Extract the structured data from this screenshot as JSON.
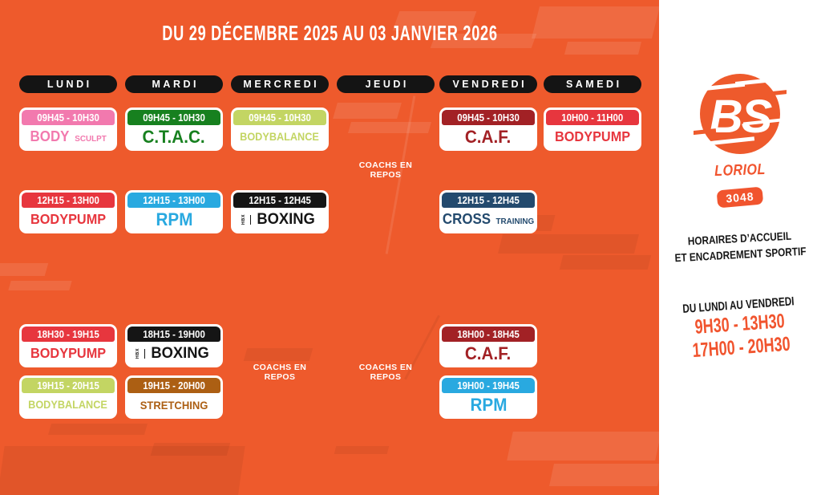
{
  "title": "DU 29 DÉCEMBRE 2025 AU 03 JANVIER 2026",
  "days": [
    "LUNDI",
    "MARDI",
    "MERCREDI",
    "JEUDI",
    "VENDREDI",
    "SAMEDI"
  ],
  "schedule": {
    "cards": [
      {
        "day": 0,
        "row": 0,
        "time": "09H45 - 10H30",
        "name": "BODY",
        "sub": "SCULPT",
        "color": "#F279AE"
      },
      {
        "day": 1,
        "row": 0,
        "time": "09H45 - 10H30",
        "name": "C.T.A.C.",
        "color": "#17801F"
      },
      {
        "day": 2,
        "row": 0,
        "time": "09H45 - 10H30",
        "name": "BODYBALANCE",
        "color": "#C3D563"
      },
      {
        "day": 4,
        "row": 0,
        "time": "09H45 - 10H30",
        "name": "C.A.F.",
        "color": "#A22125"
      },
      {
        "day": 5,
        "row": 0,
        "time": "10H00 - 11H00",
        "name": "BODYPUMP",
        "color": "#E7363E"
      },
      {
        "day": 0,
        "row": 1,
        "time": "12H15 - 13H00",
        "name": "BODYPUMP",
        "color": "#E7363E"
      },
      {
        "day": 1,
        "row": 1,
        "time": "12H15 - 13H00",
        "name": "RPM",
        "color": "#29A9E0"
      },
      {
        "day": 2,
        "row": 1,
        "time": "12H15 - 12H45",
        "name": "BOXING",
        "badge": "HBX",
        "color": "#151515"
      },
      {
        "day": 4,
        "row": 1,
        "time": "12H15 - 12H45",
        "name": "CROSS",
        "sub": "TRAINING",
        "color": "#234A6E"
      },
      {
        "day": 0,
        "row": 2,
        "time": "18H30 - 19H15",
        "name": "BODYPUMP",
        "color": "#E7363E"
      },
      {
        "day": 1,
        "row": 2,
        "time": "18H15 - 19H00",
        "name": "BOXING",
        "badge": "HBX",
        "color": "#151515"
      },
      {
        "day": 4,
        "row": 2,
        "time": "18H00 - 18H45",
        "name": "C.A.F.",
        "color": "#A22125"
      },
      {
        "day": 0,
        "row": 3,
        "time": "19H15 - 20H15",
        "name": "BODYBALANCE",
        "color": "#C3D563"
      },
      {
        "day": 1,
        "row": 3,
        "time": "19H15 - 20H00",
        "name": "STRETCHING",
        "color": "#AC5F13"
      },
      {
        "day": 4,
        "row": 3,
        "time": "19H00 - 19H45",
        "name": "RPM",
        "color": "#29A9E0"
      }
    ],
    "rest_notes": [
      {
        "day": 3,
        "slot": "top",
        "lines": [
          "COACHS EN",
          "REPOS"
        ]
      },
      {
        "day": 2,
        "slot": "bottom",
        "lines": [
          "COACHS EN",
          "REPOS"
        ]
      },
      {
        "day": 3,
        "slot": "bottom",
        "lines": [
          "COACHS EN",
          "REPOS"
        ]
      }
    ]
  },
  "sidebar": {
    "logo_text": "BS",
    "location": "LORIOL",
    "club_number": "3048",
    "info_lines": [
      "HORAIRES D’ACCUEIL",
      "ET ENCADREMENT SPORTIF"
    ],
    "opening_title": "DU LUNDI AU VENDREDI",
    "opening_hours": [
      "9H30 - 13H30",
      "17H00 - 20H30"
    ]
  },
  "colors": {
    "background": "#EE5A2C",
    "accent_orange": "#F1542E",
    "day_pill_black": "#141414",
    "panel_white": "#FFFFFF"
  }
}
